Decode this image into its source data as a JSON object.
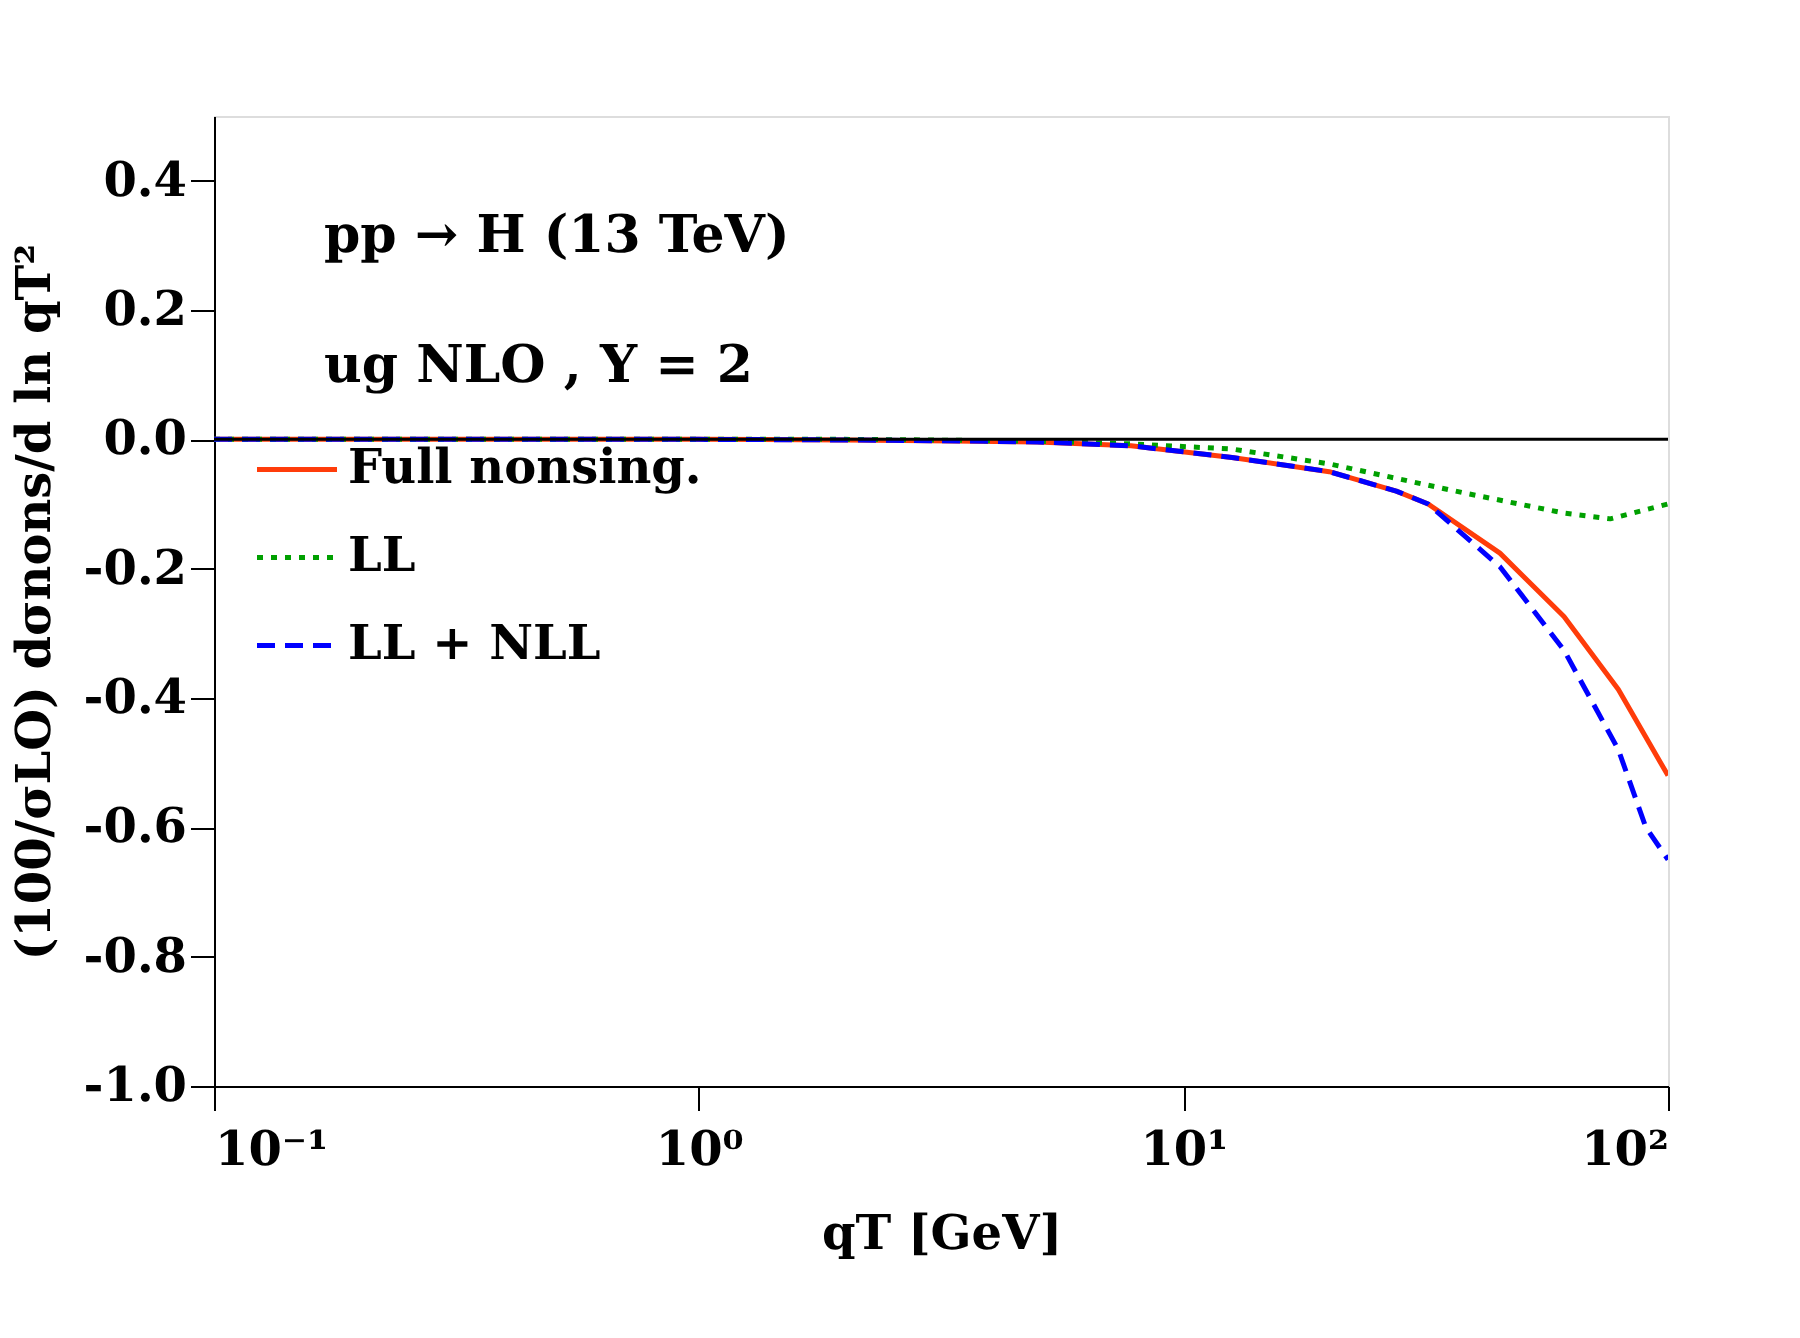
{
  "chart_data": {
    "type": "line",
    "xlabel": "qT [GeV]",
    "ylabel": "(100/σLO) dσnons/d ln qT²",
    "annotations": [
      "pp → H (13 TeV)",
      "ug NLO , Y = 2"
    ],
    "log": "x",
    "xlim": [
      0.1,
      100
    ],
    "xticks": [
      {
        "value": 0.1,
        "label": "10⁻¹"
      },
      {
        "value": 1,
        "label": "10⁰"
      },
      {
        "value": 10,
        "label": "10¹"
      },
      {
        "value": 100,
        "label": "10²"
      }
    ],
    "ylim": [
      -1.0,
      0.5
    ],
    "yticks": [
      {
        "value": -1.0,
        "label": "-1.0"
      },
      {
        "value": -0.8,
        "label": "-0.8"
      },
      {
        "value": -0.6,
        "label": "-0.6"
      },
      {
        "value": -0.4,
        "label": "-0.4"
      },
      {
        "value": -0.2,
        "label": "-0.2"
      },
      {
        "value": 0.0,
        "label": "0.0"
      },
      {
        "value": 0.2,
        "label": "0.2"
      },
      {
        "value": 0.4,
        "label": "0.4"
      }
    ],
    "ref_lines": [
      {
        "axis": "y",
        "value": 0,
        "color": "#000000"
      }
    ],
    "legend": "top left",
    "grid": false,
    "series": [
      {
        "name": "Full nonsing.",
        "color": "#ff3c0a",
        "line_style": "solid",
        "x": [
          0.1,
          0.3,
          1,
          2,
          3,
          5,
          7.8,
          12.6,
          20,
          27.5,
          32,
          45,
          61,
          79,
          100
        ],
        "values": [
          0,
          0,
          0,
          -0.001,
          -0.002,
          -0.004,
          -0.01,
          -0.028,
          -0.05,
          -0.08,
          -0.1,
          -0.176,
          -0.274,
          -0.387,
          -0.52
        ]
      },
      {
        "name": "LL",
        "color": "#00a000",
        "line_style": "dotted",
        "x": [
          0.1,
          0.3,
          1,
          2,
          3,
          5,
          7.8,
          12.6,
          20,
          38,
          61,
          76,
          100
        ],
        "values": [
          0,
          0,
          0,
          0,
          -0.001,
          -0.003,
          -0.007,
          -0.015,
          -0.038,
          -0.083,
          -0.114,
          -0.123,
          -0.1
        ]
      },
      {
        "name": "LL + NLL",
        "color": "#0000ff",
        "line_style": "dashed",
        "x": [
          0.1,
          0.3,
          1,
          2,
          3,
          5,
          7.8,
          12.6,
          20,
          27.5,
          32,
          45,
          61,
          79,
          90,
          100
        ],
        "values": [
          0,
          0,
          0,
          -0.001,
          -0.002,
          -0.004,
          -0.01,
          -0.028,
          -0.05,
          -0.08,
          -0.1,
          -0.197,
          -0.326,
          -0.48,
          -0.6,
          -0.65
        ]
      }
    ]
  }
}
